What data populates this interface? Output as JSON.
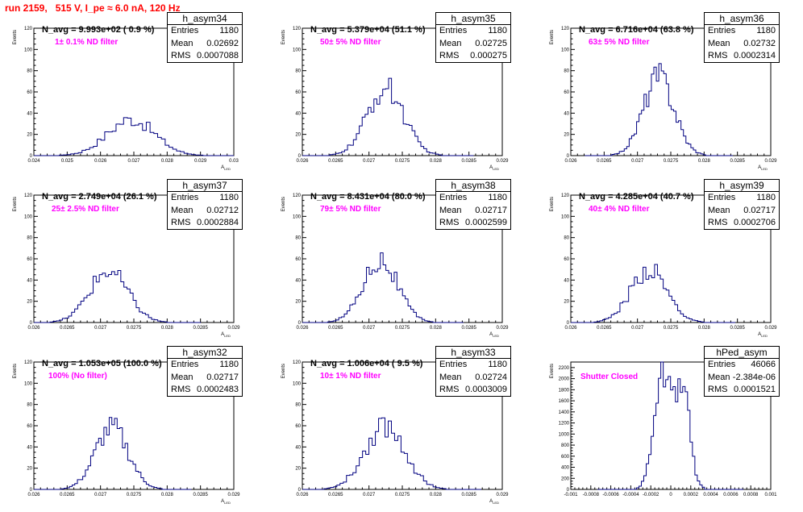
{
  "header": {
    "run_label": "run 2159,   515 V, I_pe ≈ 6.0 nA, 120 Hz"
  },
  "colors": {
    "histogram_line": "#000080",
    "header_text": "#ff0000",
    "filter_text": "#ff00ff"
  },
  "chart_data": [
    {
      "type": "histogram",
      "name": "h_asym34",
      "stats": {
        "title": "h_asym34",
        "entries": "1180",
        "mean": "0.02692",
        "rms": "0.0007088"
      },
      "n_avg_label": "N_avg = 9.993e+02 ( 0.9 %)",
      "filter_label": "1± 0.1% ND filter",
      "ylabel": "Events",
      "xlabel": "A_{LED}",
      "xlim": [
        0.024,
        0.03
      ],
      "ylim": [
        0,
        120
      ],
      "xticks": [
        "0.024",
        "0.025",
        "0.026",
        "0.027",
        "0.028",
        "0.029",
        "0.03"
      ],
      "yticks": [
        "0",
        "20",
        "40",
        "60",
        "80",
        "100",
        "120"
      ],
      "mean": 0.02692,
      "rms": 0.0007088,
      "peak": 34,
      "shape": "single"
    },
    {
      "type": "histogram",
      "name": "h_asym35",
      "stats": {
        "title": "h_asym35",
        "entries": "1180",
        "mean": "0.02725",
        "rms": "0.000275"
      },
      "n_avg_label": "N_avg = 5.379e+04 (51.1 %)",
      "filter_label": "50± 5% ND filter",
      "ylabel": "Events",
      "xlabel": "A_{LED}",
      "xlim": [
        0.026,
        0.029
      ],
      "ylim": [
        0,
        120
      ],
      "xticks": [
        "0.026",
        "0.0265",
        "0.027",
        "0.0275",
        "0.028",
        "0.0285",
        "0.029"
      ],
      "yticks": [
        "0",
        "20",
        "40",
        "60",
        "80",
        "100",
        "120"
      ],
      "mean": 0.02725,
      "rms": 0.000275,
      "peak": 63,
      "shape": "single"
    },
    {
      "type": "histogram",
      "name": "h_asym36",
      "stats": {
        "title": "h_asym36",
        "entries": "1180",
        "mean": "0.02732",
        "rms": "0.0002314"
      },
      "n_avg_label": "N_avg = 6.716e+04 (63.8 %)",
      "filter_label": "63± 5% ND filter",
      "ylabel": "Events",
      "xlabel": "A_{LED}",
      "xlim": [
        0.026,
        0.029
      ],
      "ylim": [
        0,
        120
      ],
      "xticks": [
        "0.026",
        "0.0265",
        "0.027",
        "0.0275",
        "0.028",
        "0.0285",
        "0.029"
      ],
      "yticks": [
        "0",
        "20",
        "40",
        "60",
        "80",
        "100",
        "120"
      ],
      "mean": 0.02732,
      "rms": 0.0002314,
      "peak": 74,
      "shape": "single"
    },
    {
      "type": "histogram",
      "name": "h_asym37",
      "stats": {
        "title": "h_asym37",
        "entries": "1180",
        "mean": "0.02712",
        "rms": "0.0002884"
      },
      "n_avg_label": "N_avg = 2.749e+04 (26.1 %)",
      "filter_label": "25± 2.5% ND filter",
      "ylabel": "Events",
      "xlabel": "A_{LED}",
      "xlim": [
        0.026,
        0.029
      ],
      "ylim": [
        0,
        120
      ],
      "xticks": [
        "0.026",
        "0.0265",
        "0.027",
        "0.0275",
        "0.028",
        "0.0285",
        "0.029"
      ],
      "yticks": [
        "0",
        "20",
        "40",
        "60",
        "80",
        "100",
        "120"
      ],
      "mean": 0.02712,
      "rms": 0.0002884,
      "peak": 48,
      "shape": "single"
    },
    {
      "type": "histogram",
      "name": "h_asym38",
      "stats": {
        "title": "h_asym38",
        "entries": "1180",
        "mean": "0.02717",
        "rms": "0.0002599"
      },
      "n_avg_label": "N_avg = 8.431e+04 (80.0 %)",
      "filter_label": "79± 5% ND filter",
      "ylabel": "Events",
      "xlabel": "A_{LED}",
      "xlim": [
        0.026,
        0.029
      ],
      "ylim": [
        0,
        120
      ],
      "xticks": [
        "0.026",
        "0.0265",
        "0.027",
        "0.0275",
        "0.028",
        "0.0285",
        "0.029"
      ],
      "yticks": [
        "0",
        "20",
        "40",
        "60",
        "80",
        "100",
        "120"
      ],
      "mean": 0.02717,
      "rms": 0.0002599,
      "peak": 59,
      "shape": "single"
    },
    {
      "type": "histogram",
      "name": "h_asym39",
      "stats": {
        "title": "h_asym39",
        "entries": "1180",
        "mean": "0.02717",
        "rms": "0.0002706"
      },
      "n_avg_label": "N_avg = 4.285e+04 (40.7 %)",
      "filter_label": "40± 4% ND filter",
      "ylabel": "Events",
      "xlabel": "A_{LED}",
      "xlim": [
        0.026,
        0.029
      ],
      "ylim": [
        0,
        120
      ],
      "xticks": [
        "0.026",
        "0.0265",
        "0.027",
        "0.0275",
        "0.028",
        "0.0285",
        "0.029"
      ],
      "yticks": [
        "0",
        "20",
        "40",
        "60",
        "80",
        "100",
        "120"
      ],
      "mean": 0.02717,
      "rms": 0.0002706,
      "peak": 50,
      "shape": "single"
    },
    {
      "type": "histogram",
      "name": "h_asym32",
      "stats": {
        "title": "h_asym32",
        "entries": "1180",
        "mean": "0.02717",
        "rms": "0.0002483"
      },
      "n_avg_label": "N_avg = 1.053e+05 (100.0 %)",
      "filter_label": "100% (No filter)",
      "ylabel": "Events",
      "xlabel": "A_{LED}",
      "xlim": [
        0.026,
        0.029
      ],
      "ylim": [
        0,
        120
      ],
      "xticks": [
        "0.026",
        "0.0265",
        "0.027",
        "0.0275",
        "0.028",
        "0.0285",
        "0.029"
      ],
      "yticks": [
        "0",
        "20",
        "40",
        "60",
        "80",
        "100",
        "120"
      ],
      "mean": 0.02717,
      "rms": 0.0002483,
      "peak": 58,
      "shape": "single"
    },
    {
      "type": "histogram",
      "name": "h_asym33",
      "stats": {
        "title": "h_asym33",
        "entries": "1180",
        "mean": "0.02724",
        "rms": "0.0003009"
      },
      "n_avg_label": "N_avg = 1.006e+04 ( 9.5 %)",
      "filter_label": "10± 1% ND filter",
      "ylabel": "Events",
      "xlabel": "A_{LED}",
      "xlim": [
        0.026,
        0.029
      ],
      "ylim": [
        0,
        120
      ],
      "xticks": [
        "0.026",
        "0.0265",
        "0.027",
        "0.0275",
        "0.028",
        "0.0285",
        "0.029"
      ],
      "yticks": [
        "0",
        "20",
        "40",
        "60",
        "80",
        "100",
        "120"
      ],
      "mean": 0.02724,
      "rms": 0.0003009,
      "peak": 60,
      "shape": "single"
    },
    {
      "type": "histogram",
      "name": "hPed_asym",
      "stats": {
        "title": "hPed_asym",
        "entries": "46066",
        "mean": "-2.384e-06",
        "rms": "0.0001521"
      },
      "n_avg_label": "",
      "filter_label": "Shutter Closed",
      "ylabel": "Events",
      "xlabel": "",
      "xlim": [
        -0.001,
        0.001
      ],
      "ylim": [
        0,
        2300
      ],
      "xticks": [
        "-0.001",
        "-0.0008",
        "-0.0006",
        "-0.0004",
        "-0.0002",
        "0",
        "0.0002",
        "0.0004",
        "0.0006",
        "0.0008",
        "0.001"
      ],
      "yticks": [
        "0",
        "200",
        "400",
        "600",
        "800",
        "1000",
        "1200",
        "1400",
        "1600",
        "1800",
        "2000",
        "2200"
      ],
      "mean": -2.384e-06,
      "rms": 0.0001521,
      "peak": 2160,
      "shape": "double"
    }
  ]
}
